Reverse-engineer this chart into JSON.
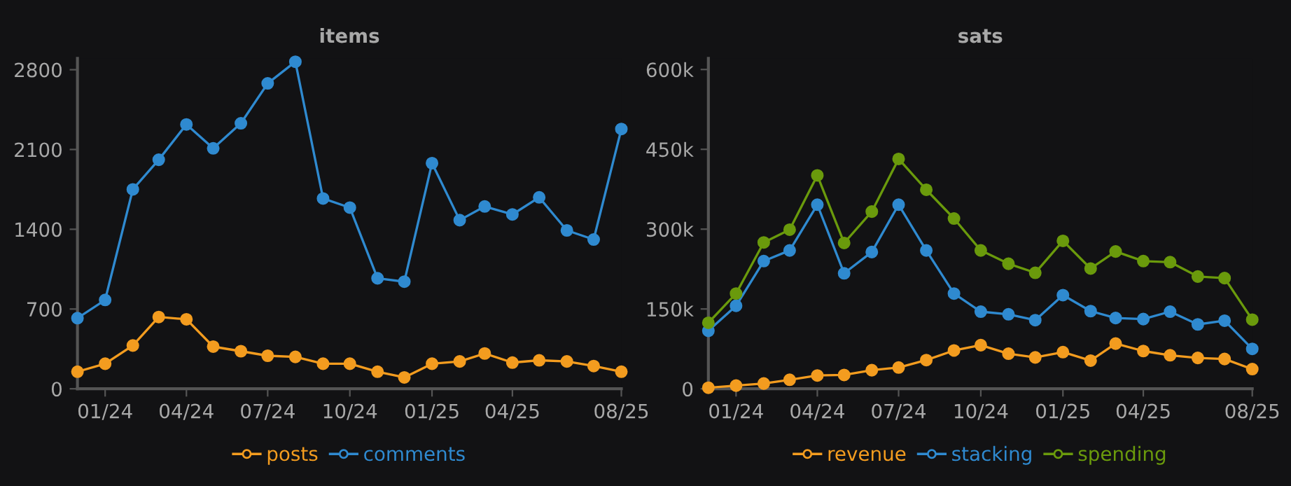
{
  "chart_data": [
    {
      "type": "line",
      "title": "items",
      "x": [
        "2023-12",
        "2024-01",
        "2024-02",
        "2024-03",
        "2024-04",
        "2024-05",
        "2024-06",
        "2024-07",
        "2024-08",
        "2024-09",
        "2024-10",
        "2024-11",
        "2024-12",
        "2025-01",
        "2025-02",
        "2025-03",
        "2025-04",
        "2025-05",
        "2025-06",
        "2025-07",
        "2025-08"
      ],
      "series": [
        {
          "name": "posts",
          "color": "#f39c1f",
          "values": [
            150,
            220,
            380,
            630,
            610,
            370,
            330,
            290,
            280,
            220,
            220,
            150,
            100,
            220,
            240,
            310,
            230,
            250,
            240,
            200,
            150
          ]
        },
        {
          "name": "comments",
          "color": "#2f8ad0",
          "values": [
            620,
            780,
            1750,
            2010,
            2320,
            2110,
            2330,
            2680,
            2870,
            1670,
            1590,
            970,
            940,
            1980,
            1480,
            1600,
            1530,
            1680,
            1390,
            1310,
            2280
          ]
        }
      ],
      "xlim": [
        "2023-12",
        "2025-08"
      ],
      "xticks": [
        {
          "value": "2024-01",
          "label": "01/24"
        },
        {
          "value": "2024-04",
          "label": "04/24"
        },
        {
          "value": "2024-07",
          "label": "07/24"
        },
        {
          "value": "2024-10",
          "label": "10/24"
        },
        {
          "value": "2025-01",
          "label": "01/25"
        },
        {
          "value": "2025-04",
          "label": "04/25"
        },
        {
          "value": "2025-08",
          "label": "08/25"
        }
      ],
      "ylim": [
        0,
        2900
      ],
      "yticks": [
        0,
        700,
        1400,
        2100,
        2800
      ],
      "grid": false,
      "legend": "bottom",
      "marker": "circle",
      "line_style": "solid"
    },
    {
      "type": "line",
      "title": "sats",
      "x": [
        "2023-12",
        "2024-01",
        "2024-02",
        "2024-03",
        "2024-04",
        "2024-05",
        "2024-06",
        "2024-07",
        "2024-08",
        "2024-09",
        "2024-10",
        "2024-11",
        "2024-12",
        "2025-01",
        "2025-02",
        "2025-03",
        "2025-04",
        "2025-05",
        "2025-06",
        "2025-07",
        "2025-08"
      ],
      "series": [
        {
          "name": "revenue",
          "color": "#f39c1f",
          "values": [
            2000,
            6000,
            10000,
            17000,
            25000,
            26000,
            35000,
            40000,
            54000,
            72000,
            82000,
            66000,
            59000,
            69000,
            53000,
            85000,
            71000,
            63000,
            58000,
            56000,
            37000
          ]
        },
        {
          "name": "stacking",
          "color": "#2f8ad0",
          "values": [
            109000,
            156000,
            240000,
            260000,
            346000,
            217000,
            257000,
            346000,
            260000,
            179000,
            145000,
            140000,
            129000,
            176000,
            146000,
            133000,
            131000,
            145000,
            121000,
            128000,
            75000
          ]
        },
        {
          "name": "spending",
          "color": "#6a9a0c",
          "values": [
            124000,
            179000,
            275000,
            299000,
            401000,
            274000,
            333000,
            432000,
            374000,
            320000,
            260000,
            235000,
            218000,
            278000,
            226000,
            258000,
            240000,
            238000,
            211000,
            208000,
            130000
          ]
        }
      ],
      "xlim": [
        "2023-12",
        "2025-08"
      ],
      "xticks": [
        {
          "value": "2024-01",
          "label": "01/24"
        },
        {
          "value": "2024-04",
          "label": "04/24"
        },
        {
          "value": "2024-07",
          "label": "07/24"
        },
        {
          "value": "2024-10",
          "label": "10/24"
        },
        {
          "value": "2025-01",
          "label": "01/25"
        },
        {
          "value": "2025-04",
          "label": "04/25"
        },
        {
          "value": "2025-08",
          "label": "08/25"
        }
      ],
      "ylim": [
        0,
        621000
      ],
      "yticks": [
        0,
        {
          "value": 150000,
          "label": "150k"
        },
        {
          "value": 300000,
          "label": "300k"
        },
        {
          "value": 450000,
          "label": "450k"
        },
        {
          "value": 600000,
          "label": "600k"
        }
      ],
      "grid": false,
      "legend": "bottom",
      "marker": "circle",
      "line_style": "solid"
    }
  ]
}
